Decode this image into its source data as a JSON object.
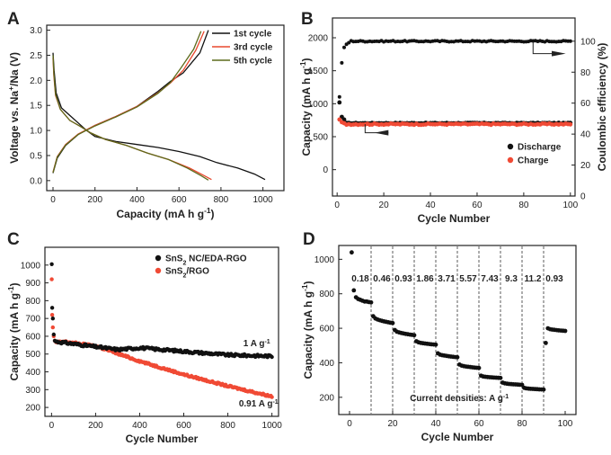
{
  "chart_data": [
    {
      "panel": "A",
      "type": "line",
      "xlabel": "Capacity (mA h g",
      "xlabel_sup": "-1",
      "xlabel_end": ")",
      "ylabel": "Voltage vs. Na",
      "ylabel_sup": "+",
      "ylabel_end": "/Na (V)",
      "xlim": [
        -30,
        1100
      ],
      "ylim": [
        -0.2,
        3.1
      ],
      "xticks": [
        0,
        200,
        400,
        600,
        800,
        1000
      ],
      "yticks": [
        0.0,
        0.5,
        1.0,
        1.5,
        2.0,
        2.5,
        3.0
      ],
      "ytick_labels": [
        "0.0",
        "0.5",
        "1.0",
        "1.5",
        "2.0",
        "2.5",
        "3.0"
      ],
      "legend_position": "top-right",
      "series": [
        {
          "name": "1st cycle",
          "color": "#111111",
          "discharge": [
            [
              0,
              2.55
            ],
            [
              5,
              2.2
            ],
            [
              15,
              1.75
            ],
            [
              40,
              1.45
            ],
            [
              80,
              1.3
            ],
            [
              120,
              1.15
            ],
            [
              160,
              1.0
            ],
            [
              200,
              0.88
            ],
            [
              300,
              0.78
            ],
            [
              400,
              0.72
            ],
            [
              500,
              0.66
            ],
            [
              600,
              0.58
            ],
            [
              700,
              0.48
            ],
            [
              780,
              0.36
            ],
            [
              880,
              0.25
            ],
            [
              960,
              0.13
            ],
            [
              1010,
              0.02
            ]
          ],
          "charge": [
            [
              0,
              0.15
            ],
            [
              20,
              0.45
            ],
            [
              60,
              0.7
            ],
            [
              120,
              0.92
            ],
            [
              200,
              1.1
            ],
            [
              300,
              1.28
            ],
            [
              400,
              1.48
            ],
            [
              500,
              1.78
            ],
            [
              560,
              1.98
            ],
            [
              620,
              2.15
            ],
            [
              700,
              2.55
            ],
            [
              740,
              3.0
            ]
          ]
        },
        {
          "name": "3rd cycle",
          "color": "#e8482e",
          "discharge": [
            [
              0,
              2.45
            ],
            [
              4,
              2.1
            ],
            [
              12,
              1.7
            ],
            [
              35,
              1.42
            ],
            [
              80,
              1.2
            ],
            [
              130,
              1.08
            ],
            [
              180,
              0.95
            ],
            [
              250,
              0.82
            ],
            [
              350,
              0.7
            ],
            [
              450,
              0.55
            ],
            [
              550,
              0.42
            ],
            [
              650,
              0.25
            ],
            [
              720,
              0.1
            ],
            [
              755,
              0.02
            ]
          ],
          "charge": [
            [
              0,
              0.17
            ],
            [
              20,
              0.48
            ],
            [
              60,
              0.72
            ],
            [
              120,
              0.93
            ],
            [
              200,
              1.1
            ],
            [
              300,
              1.28
            ],
            [
              400,
              1.48
            ],
            [
              500,
              1.75
            ],
            [
              560,
              1.95
            ],
            [
              620,
              2.2
            ],
            [
              680,
              2.6
            ],
            [
              720,
              2.98
            ]
          ]
        },
        {
          "name": "5th cycle",
          "color": "#5d6b1c",
          "discharge": [
            [
              0,
              2.5
            ],
            [
              4,
              2.15
            ],
            [
              12,
              1.72
            ],
            [
              35,
              1.42
            ],
            [
              80,
              1.2
            ],
            [
              130,
              1.08
            ],
            [
              180,
              0.95
            ],
            [
              250,
              0.82
            ],
            [
              350,
              0.7
            ],
            [
              450,
              0.55
            ],
            [
              550,
              0.42
            ],
            [
              640,
              0.25
            ],
            [
              705,
              0.1
            ],
            [
              740,
              0.01
            ]
          ],
          "charge": [
            [
              0,
              0.16
            ],
            [
              20,
              0.47
            ],
            [
              60,
              0.71
            ],
            [
              120,
              0.92
            ],
            [
              200,
              1.09
            ],
            [
              300,
              1.27
            ],
            [
              400,
              1.47
            ],
            [
              500,
              1.74
            ],
            [
              560,
              1.96
            ],
            [
              610,
              2.25
            ],
            [
              670,
              2.62
            ],
            [
              705,
              2.98
            ]
          ]
        }
      ]
    },
    {
      "panel": "B",
      "type": "scatter",
      "xlabel": "Cycle Number",
      "ylabel": "Capacity (mA h g",
      "ylabel_sup": "-1",
      "ylabel_end": ")",
      "ylabel_right": "Coulombic efficiency (%)",
      "xlim": [
        -2,
        102
      ],
      "ylim": [
        -400,
        2300
      ],
      "ylim_right": [
        0,
        115
      ],
      "xticks": [
        0,
        20,
        40,
        60,
        80,
        100
      ],
      "yticks": [
        0,
        500,
        1000,
        1500,
        2000
      ],
      "yticks_right": [
        0,
        20,
        40,
        60,
        80,
        100
      ],
      "legend_position": "bottom-right",
      "series": [
        {
          "name": "Discharge",
          "color": "#111111",
          "first_points": [
            [
              1,
              1020
            ],
            [
              2,
              800
            ],
            [
              3,
              760
            ]
          ],
          "plateau": 705,
          "noise": 6
        },
        {
          "name": "Charge",
          "color": "#f04a35",
          "first_points": [
            [
              1,
              760
            ],
            [
              2,
              720
            ],
            [
              3,
              705
            ]
          ],
          "plateau": 690,
          "noise": 10
        },
        {
          "name": "Coulombic efficiency",
          "color": "#111111",
          "first_points": [
            [
              1,
              64
            ],
            [
              2,
              86
            ],
            [
              3,
              96
            ],
            [
              4,
              98
            ],
            [
              5,
              99
            ]
          ],
          "plateau": 100,
          "noise": 0.4
        }
      ]
    },
    {
      "panel": "C",
      "type": "scatter",
      "xlabel": "Cycle Number",
      "ylabel": "Capacity (mA h g",
      "ylabel_sup": "-1",
      "ylabel_end": ")",
      "xlim": [
        -30,
        1030
      ],
      "ylim": [
        150,
        1100
      ],
      "xticks": [
        0,
        200,
        400,
        600,
        800,
        1000
      ],
      "yticks": [
        200,
        300,
        400,
        500,
        600,
        700,
        800,
        900,
        1000
      ],
      "legend_position": "top-right",
      "series": [
        {
          "name": "SnS",
          "name_sub": "2",
          "name_end": " NC/EDA-RGO",
          "color": "#111111",
          "first_points": [
            [
              1,
              1005
            ],
            [
              3,
              760
            ],
            [
              6,
              700
            ],
            [
              10,
              610
            ],
            [
              15,
              575
            ]
          ],
          "profile": [
            [
              20,
              570
            ],
            [
              300,
              525
            ],
            [
              400,
              535
            ],
            [
              600,
              515
            ],
            [
              800,
              495
            ],
            [
              1000,
              488
            ]
          ],
          "noise": 7
        },
        {
          "name": "SnS",
          "name_sub": "2",
          "name_end": "/RGO",
          "color": "#f04a35",
          "first_points": [
            [
              1,
              920
            ],
            [
              3,
              720
            ],
            [
              6,
              650
            ],
            [
              10,
              600
            ],
            [
              15,
              575
            ]
          ],
          "profile": [
            [
              20,
              565
            ],
            [
              60,
              570
            ],
            [
              200,
              545
            ],
            [
              400,
              460
            ],
            [
              600,
              385
            ],
            [
              800,
              320
            ],
            [
              1000,
              262
            ]
          ],
          "noise": 5
        }
      ],
      "annotations": [
        {
          "text": "1 A g",
          "sup": "-1",
          "x": 870,
          "y": 545
        },
        {
          "text": "0.91 A g",
          "sup": "-1",
          "x": 850,
          "y": 205
        }
      ]
    },
    {
      "panel": "D",
      "type": "scatter",
      "xlabel": "Cycle Number",
      "ylabel": "Capacity (mA h g",
      "ylabel_sup": "-1",
      "ylabel_end": ")",
      "xlim": [
        -5,
        105
      ],
      "ylim": [
        100,
        1080
      ],
      "xticks": [
        0,
        20,
        40,
        60,
        80,
        100
      ],
      "yticks": [
        200,
        400,
        600,
        800,
        1000
      ],
      "dividers": [
        10,
        20,
        30,
        40,
        50,
        60,
        70,
        80,
        90
      ],
      "rate_labels": [
        "0.18",
        "0.46",
        "0.93",
        "1.86",
        "3.71",
        "5.57",
        "7.43",
        "9.3",
        "11.2",
        "0.93"
      ],
      "rate_label_y": 890,
      "footnote": "Current densities: A g",
      "footnote_sup": "-1",
      "segments": [
        {
          "start": 1,
          "end": 10,
          "values": [
            1040,
            820,
            780,
            770,
            765,
            760,
            755,
            755,
            752,
            750
          ]
        },
        {
          "start": 11,
          "end": 20,
          "from": 670,
          "to": 630
        },
        {
          "start": 21,
          "end": 30,
          "from": 590,
          "to": 560
        },
        {
          "start": 31,
          "end": 40,
          "from": 525,
          "to": 505
        },
        {
          "start": 41,
          "end": 50,
          "from": 455,
          "to": 432
        },
        {
          "start": 51,
          "end": 60,
          "from": 390,
          "to": 370
        },
        {
          "start": 61,
          "end": 70,
          "from": 325,
          "to": 312
        },
        {
          "start": 71,
          "end": 80,
          "from": 285,
          "to": 272
        },
        {
          "start": 81,
          "end": 90,
          "from": 255,
          "to": 245
        },
        {
          "start": 91,
          "end": 100,
          "first": 515,
          "from": 600,
          "to": 585
        }
      ],
      "color": "#111111"
    }
  ]
}
